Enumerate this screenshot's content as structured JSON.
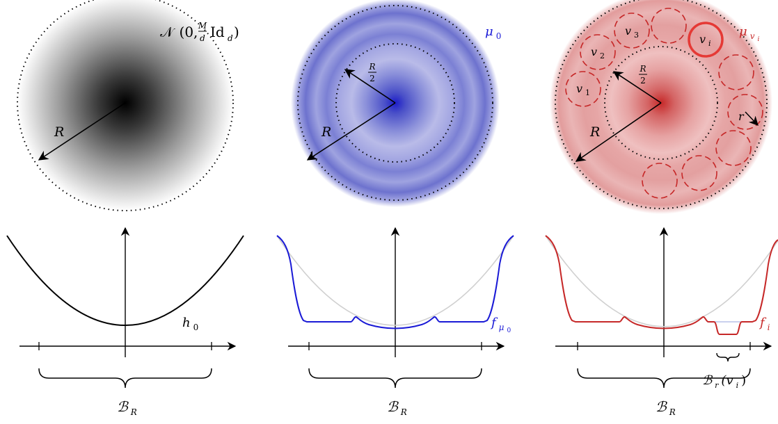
{
  "panels": {
    "left": {
      "dist_label": "𝒩",
      "dist_args_open": "(0,",
      "frac_num": "M",
      "frac_den": "d",
      "dist_args_close": "Id",
      "dist_sub": "d",
      "dist_close_paren": ")",
      "radius_label": "R",
      "func_label": "h",
      "func_sub": "0",
      "ball_label": "ℬ",
      "ball_sub": "R"
    },
    "middle": {
      "dist_label": "μ",
      "dist_sub": "0",
      "half_radius_num": "R",
      "half_radius_den": "2",
      "radius_label": "R",
      "func_label": "f",
      "func_sub": "μ",
      "func_subsub": "0",
      "ball_label": "ℬ",
      "ball_sub": "R"
    },
    "right": {
      "dist_label": "μ",
      "dist_sub": "v",
      "dist_subsub": "i",
      "half_radius_num": "R",
      "half_radius_den": "2",
      "radius_label": "R",
      "small_radius_label": "r",
      "v1": "v",
      "v1_sub": "1",
      "v2": "v",
      "v2_sub": "2",
      "v3": "v",
      "v3_sub": "3",
      "vi": "v",
      "vi_sub": "i",
      "func_label": "f",
      "func_sub": "i",
      "ball_label": "ℬ",
      "ball_sub": "R",
      "small_ball_label": "ℬ",
      "small_ball_sub": "r",
      "small_ball_arg": "(v",
      "small_ball_arg_sub": "i",
      "small_ball_arg_close": ")"
    }
  },
  "colors": {
    "gray": "#000000",
    "blue": "#1a1ad6",
    "red": "#c62828",
    "faint": "#d0d0d0"
  }
}
